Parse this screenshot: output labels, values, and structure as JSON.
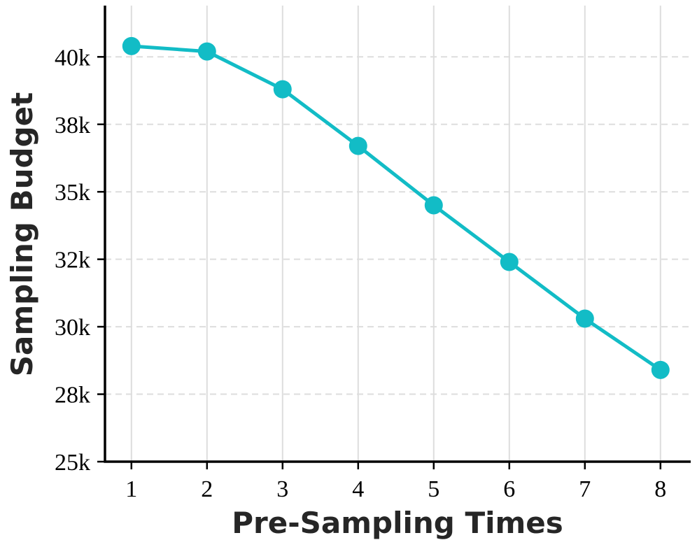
{
  "chart_data": {
    "type": "line",
    "title": "",
    "xlabel": "Pre-Sampling Times",
    "ylabel": "Sampling Budget",
    "x": [
      1,
      2,
      3,
      4,
      5,
      6,
      7,
      8
    ],
    "series": [
      {
        "values": [
          40400,
          40200,
          38800,
          36700,
          34500,
          32400,
          30300,
          28400
        ]
      }
    ],
    "xlim": [
      0.65,
      8.4
    ],
    "ylim": [
      25000,
      41900
    ],
    "y_ticks": [
      25000,
      27500,
      30000,
      32500,
      35000,
      37500,
      40000
    ],
    "y_tick_labels": [
      "25k",
      "28k",
      "30k",
      "32k",
      "35k",
      "38k",
      "40k"
    ],
    "x_tick_labels": [
      "1",
      "2",
      "3",
      "4",
      "5",
      "6",
      "7",
      "8"
    ],
    "grid": {
      "vertical": true,
      "horizontal_dashed": true
    },
    "legend": "none",
    "colors": {
      "series": "#12bcc6",
      "grid": "#dddddd",
      "axis": "#000000"
    }
  }
}
